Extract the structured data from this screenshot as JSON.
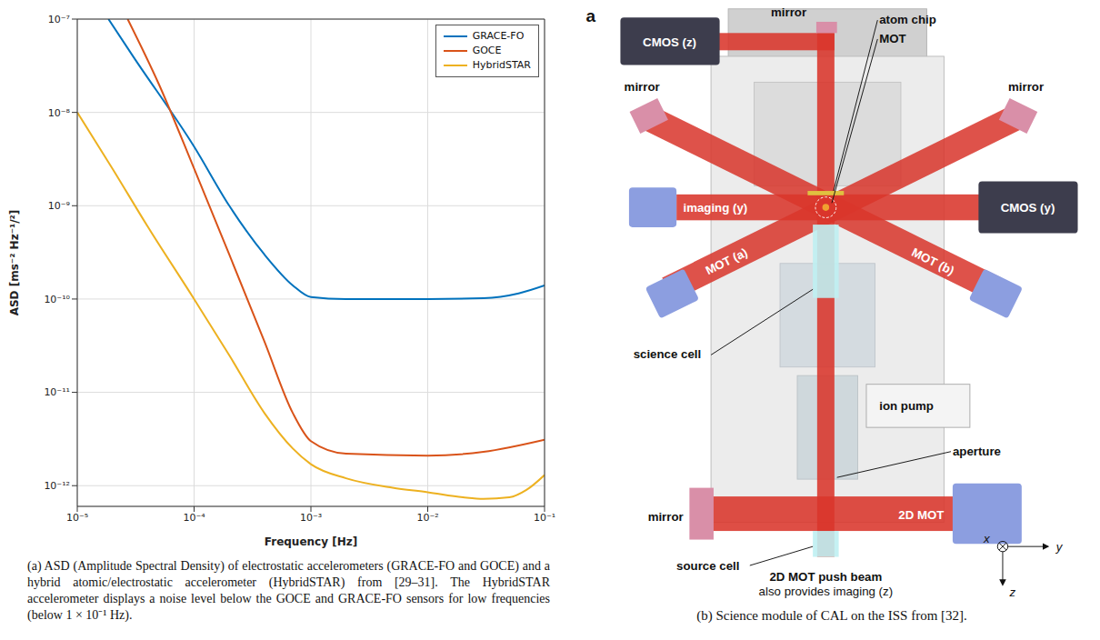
{
  "chart_data": {
    "type": "line",
    "log": true,
    "x_label": "Frequency [Hz]",
    "y_label": "ASD [ms⁻² Hz⁻¹/²]",
    "xlim": [
      1e-05,
      0.1
    ],
    "ylim": [
      6e-13,
      1e-07
    ],
    "xticks": [
      {
        "value": 1e-05,
        "label": "10⁻⁵"
      },
      {
        "value": 0.0001,
        "label": "10⁻⁴"
      },
      {
        "value": 0.001,
        "label": "10⁻³"
      },
      {
        "value": 0.01,
        "label": "10⁻²"
      },
      {
        "value": 0.1,
        "label": "10⁻¹"
      }
    ],
    "yticks": [
      {
        "value": 1e-12,
        "label": "10⁻¹²"
      },
      {
        "value": 1e-11,
        "label": "10⁻¹¹"
      },
      {
        "value": 1e-10,
        "label": "10⁻¹⁰"
      },
      {
        "value": 1e-09,
        "label": "10⁻⁹"
      },
      {
        "value": 1e-08,
        "label": "10⁻⁸"
      },
      {
        "value": 1e-07,
        "label": "10⁻⁷"
      }
    ],
    "grid": true,
    "legend": "upper right",
    "series": [
      {
        "name": "GRACE-FO",
        "color": "#0072BD",
        "x": [
          1.85e-05,
          3e-05,
          0.0001,
          0.0002,
          0.0004,
          0.0007,
          0.001,
          0.002,
          0.01,
          0.03,
          0.06,
          0.1
        ],
        "values": [
          1e-07,
          4e-08,
          4.3e-09,
          1e-09,
          3e-10,
          1.4e-10,
          1.05e-10,
          1e-10,
          1e-10,
          1.02e-10,
          1.15e-10,
          1.4e-10
        ]
      },
      {
        "name": "GOCE",
        "color": "#D95319",
        "x": [
          2.7e-05,
          5e-05,
          0.0001,
          0.0002,
          0.0004,
          0.0007,
          0.001,
          0.002,
          0.01,
          0.03,
          0.1
        ],
        "values": [
          1e-07,
          2e-08,
          2.5e-09,
          3e-10,
          3.5e-11,
          6e-12,
          3e-12,
          2.2e-12,
          2.1e-12,
          2.3e-12,
          3.1e-12
        ]
      },
      {
        "name": "HybridSTAR",
        "color": "#EDB120",
        "x": [
          1e-05,
          2e-05,
          4e-05,
          0.0001,
          0.0002,
          0.0004,
          0.0007,
          0.001,
          0.002,
          0.005,
          0.01,
          0.02,
          0.03,
          0.05,
          0.07,
          0.1
        ],
        "values": [
          1e-08,
          2.5e-09,
          6e-10,
          1e-10,
          2.5e-11,
          6e-12,
          2.5e-12,
          1.7e-12,
          1.2e-12,
          9.5e-13,
          8.5e-13,
          7.5e-13,
          7.2e-13,
          7.5e-13,
          9e-13,
          1.3e-12
        ]
      }
    ]
  },
  "captions": {
    "a": "(a) ASD (Amplitude Spectral Density) of electrostatic accelerometers (GRACE-FO and GOCE) and a hybrid atomic/electrostatic accelerometer (HybridSTAR) from [29–31]. The HybridSTAR accelerometer displays a noise level below the GOCE and GRACE-FO sensors for low frequencies (below 1 × 10⁻¹ Hz).",
    "b": "(b) Science module of CAL on the ISS from [32]."
  },
  "diagram": {
    "panel_letter": "a",
    "labels": {
      "mirror_top": "mirror",
      "atom_chip": "atom chip",
      "mot": "MOT",
      "cmos_z": "CMOS (z)",
      "mirror_left": "mirror",
      "mirror_right": "mirror",
      "imaging_y": "imaging (y)",
      "cmos_y": "CMOS (y)",
      "mot_a": "MOT (a)",
      "mot_b": "MOT (b)",
      "science_cell": "science cell",
      "ion_pump": "ion pump",
      "aperture": "aperture",
      "mirror_bottom": "mirror",
      "mot_2d": "2D MOT",
      "source_cell": "source cell",
      "push_beam": "2D MOT push beam",
      "push_beam_note": "also provides imaging (z)"
    },
    "axes": {
      "x": "x",
      "y": "y",
      "z": "z"
    }
  }
}
